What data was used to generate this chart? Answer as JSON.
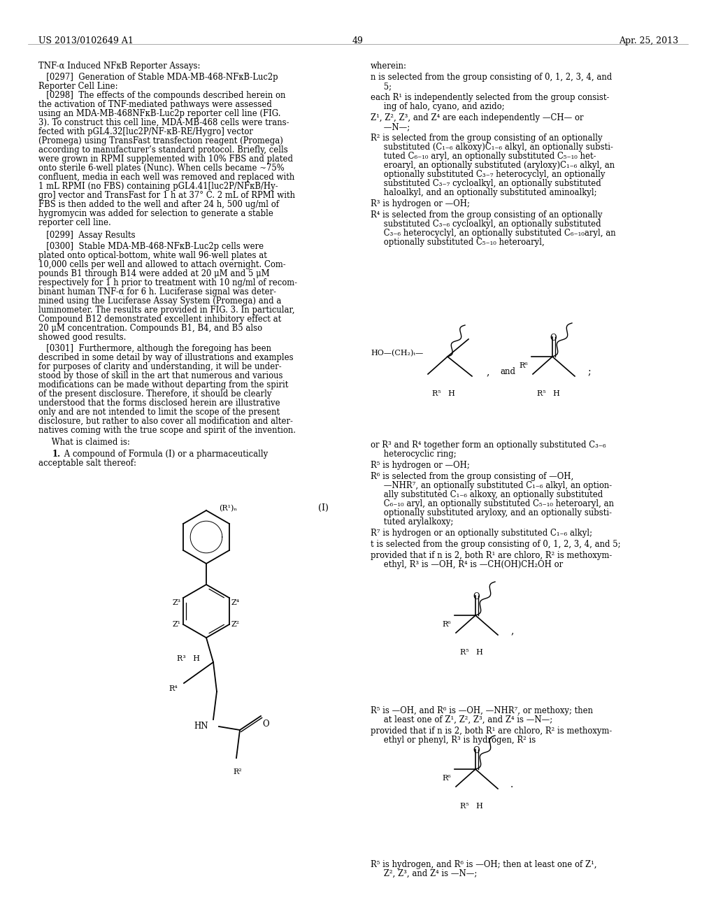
{
  "page_header_left": "US 2013/0102649 A1",
  "page_header_right": "Apr. 25, 2013",
  "page_number": "49",
  "background_color": "#ffffff",
  "text_color": "#000000"
}
